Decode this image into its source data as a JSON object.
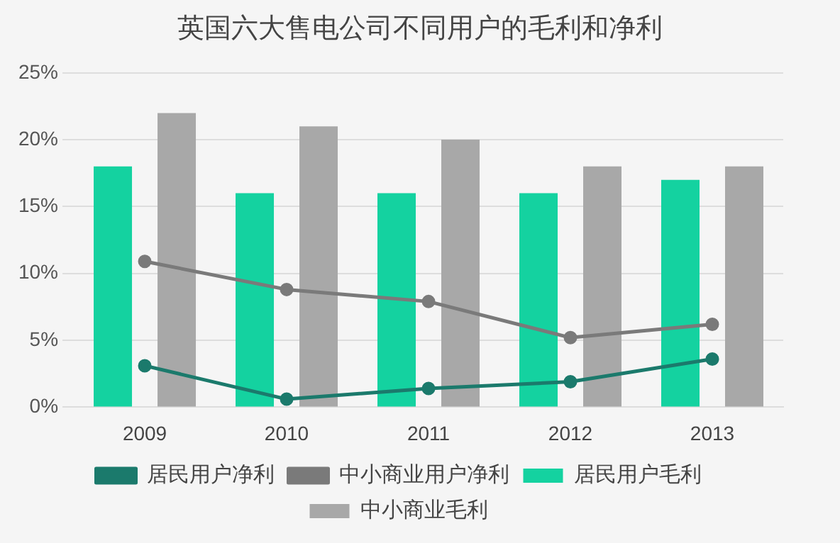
{
  "chart_data": {
    "type": "bar",
    "title": "英国六大售电公司不同用户的毛利和净利",
    "categories": [
      "2009",
      "2010",
      "2011",
      "2012",
      "2013"
    ],
    "series": [
      {
        "name": "居民用户毛利",
        "color": "#14d2a0",
        "values": [
          18,
          16,
          16,
          16,
          17
        ]
      },
      {
        "name": "中小商业毛利",
        "color": "#a8a8a8",
        "values": [
          22,
          21,
          20,
          18,
          18
        ]
      },
      {
        "name": "居民用户净利",
        "type": "line",
        "color": "#1b7a6c",
        "values": [
          3.1,
          0.6,
          1.4,
          1.9,
          3.6
        ]
      },
      {
        "name": "中小商业用户净利",
        "type": "line",
        "color": "#7a7a7a",
        "values": [
          10.9,
          8.8,
          7.9,
          5.2,
          6.2
        ]
      }
    ],
    "ylim": [
      0,
      25
    ],
    "yticks": [
      {
        "value": 0,
        "label": "0%"
      },
      {
        "value": 5,
        "label": "5%"
      },
      {
        "value": 10,
        "label": "10%"
      },
      {
        "value": 15,
        "label": "15%"
      },
      {
        "value": 20,
        "label": "20%"
      },
      {
        "value": 25,
        "label": "25%"
      }
    ],
    "grid": "y",
    "legend": "bottom",
    "marker": "circle",
    "line_style": "solid"
  }
}
